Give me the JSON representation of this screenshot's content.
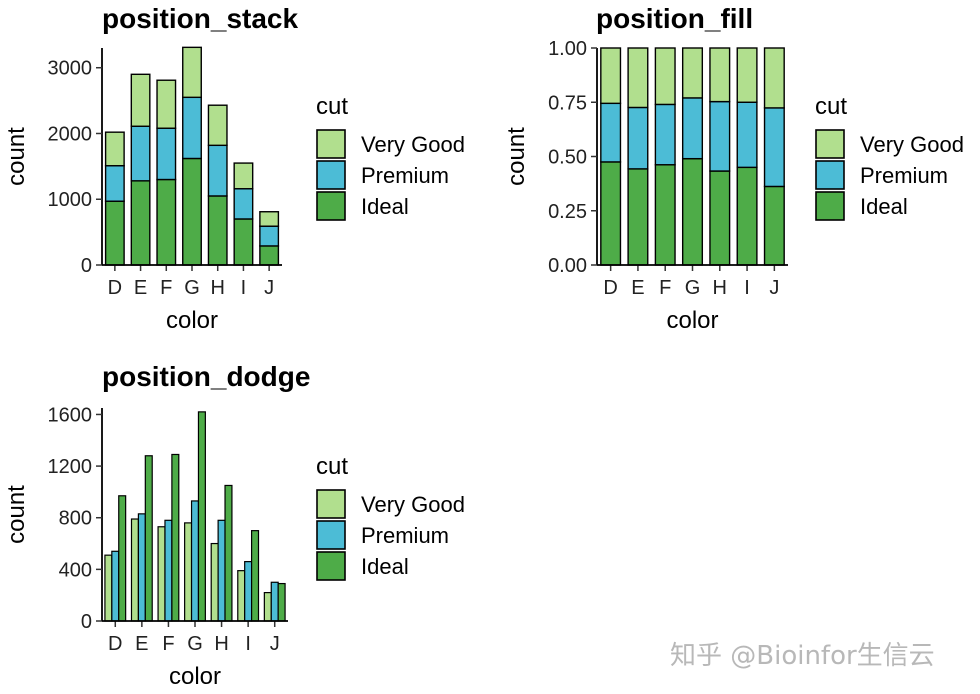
{
  "chart_data": [
    {
      "type": "bar",
      "position": "stack",
      "title": "position_stack",
      "xlabel": "color",
      "ylabel": "count",
      "ylim": [
        0,
        3300
      ],
      "yticks": [
        0,
        1000,
        2000,
        3000
      ],
      "categories": [
        "D",
        "E",
        "F",
        "G",
        "H",
        "I",
        "J"
      ],
      "series": [
        {
          "name": "Ideal",
          "values": [
            970,
            1280,
            1300,
            1620,
            1050,
            700,
            290
          ]
        },
        {
          "name": "Premium",
          "values": [
            540,
            830,
            780,
            930,
            770,
            460,
            300
          ]
        },
        {
          "name": "Very Good",
          "values": [
            510,
            790,
            730,
            760,
            610,
            390,
            220
          ]
        }
      ]
    },
    {
      "type": "bar",
      "position": "fill",
      "title": "position_fill",
      "xlabel": "color",
      "ylabel": "count",
      "ylim": [
        0,
        1
      ],
      "yticks": [
        0,
        0.25,
        0.5,
        0.75,
        1
      ],
      "ytick_labels": [
        "0.00",
        "0.25",
        "0.50",
        "0.75",
        "1.00"
      ],
      "categories": [
        "D",
        "E",
        "F",
        "G",
        "H",
        "I",
        "J"
      ],
      "series": [
        {
          "name": "Ideal",
          "values": [
            0.475,
            0.443,
            0.462,
            0.49,
            0.433,
            0.45,
            0.362
          ]
        },
        {
          "name": "Premium",
          "values": [
            0.27,
            0.283,
            0.278,
            0.28,
            0.32,
            0.3,
            0.362
          ]
        },
        {
          "name": "Very Good",
          "values": [
            0.255,
            0.274,
            0.26,
            0.23,
            0.247,
            0.25,
            0.276
          ]
        }
      ]
    },
    {
      "type": "bar",
      "position": "dodge",
      "title": "position_dodge",
      "xlabel": "color",
      "ylabel": "count",
      "ylim": [
        0,
        1650
      ],
      "yticks": [
        0,
        400,
        800,
        1200,
        1600
      ],
      "categories": [
        "D",
        "E",
        "F",
        "G",
        "H",
        "I",
        "J"
      ],
      "series": [
        {
          "name": "Very Good",
          "values": [
            510,
            790,
            730,
            760,
            600,
            390,
            220
          ]
        },
        {
          "name": "Premium",
          "values": [
            540,
            830,
            780,
            930,
            780,
            460,
            300
          ]
        },
        {
          "name": "Ideal",
          "values": [
            970,
            1280,
            1290,
            1620,
            1050,
            700,
            290
          ]
        }
      ]
    }
  ],
  "legend": {
    "title": "cut",
    "items": [
      "Very Good",
      "Premium",
      "Ideal"
    ]
  },
  "colors": {
    "Very Good": "#b1df8e",
    "Premium": "#4cbcd6",
    "Ideal": "#4eac48"
  },
  "watermark": "知乎 @Bioinfor生信云"
}
